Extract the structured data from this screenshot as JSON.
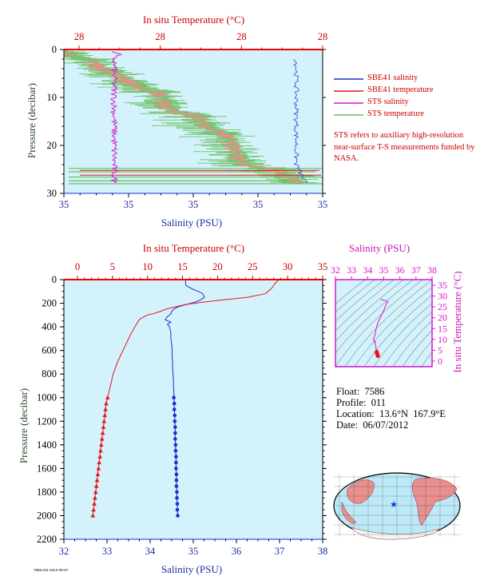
{
  "colors": {
    "plot_bg": "#d4f2fb",
    "temperature": "#e8141e",
    "salinity": "#1a2fd0",
    "sts_salinity": "#d615cf",
    "sts_temperature": "#6ac060",
    "red_text": "#cc0000",
    "navy_text": "#1a2f9c",
    "green_text": "#2a4a2a",
    "magenta_text": "#c817b4"
  },
  "top_panel": {
    "ylabel": "Pressure (decibar)",
    "xlabel_bottom": "Salinity (PSU)",
    "xlabel_top": "In situ Temperature (°C)",
    "bottom_ticks": [
      "35",
      "35",
      "35",
      "35",
      "35"
    ],
    "top_ticks": [
      "28",
      "28",
      "28",
      "28"
    ],
    "y_ticks": [
      "0",
      "10",
      "20",
      "30"
    ]
  },
  "legend": [
    {
      "label": "SBE41 salinity",
      "color": "#1a2fd0"
    },
    {
      "label": "SBE41 temperature",
      "color": "#e8141e"
    },
    {
      "label": "STS salinity",
      "color": "#d615cf"
    },
    {
      "label": "STS temperature",
      "color": "#6ac060"
    }
  ],
  "note": "STS refers to auxiliary high-resolution near-surface T-S measurements funded by NASA.",
  "main_panel": {
    "ylabel": "Pressure (decibar)",
    "xlabel_bottom": "Salinity (PSU)",
    "xlabel_top": "In situ Temperature (°C)",
    "salinity_ticks": [
      "32",
      "33",
      "34",
      "35",
      "36",
      "37",
      "38"
    ],
    "temperature_ticks": [
      "0",
      "5",
      "10",
      "15",
      "20",
      "25",
      "30",
      "35"
    ],
    "pressure_ticks": [
      "0",
      "200",
      "400",
      "600",
      "800",
      "1000",
      "1200",
      "1400",
      "1600",
      "1800",
      "2000",
      "2200"
    ]
  },
  "ts_panel": {
    "xlabel_top": "Salinity (PSU)",
    "ylabel_right": "In situ Temperature (°C)",
    "sal_ticks": [
      "32",
      "33",
      "34",
      "35",
      "36",
      "37",
      "38"
    ],
    "temp_ticks": [
      "0",
      "5",
      "10",
      "15",
      "20",
      "25",
      "30",
      "35"
    ]
  },
  "info": {
    "float": "Float:  7586",
    "profile": "Profile:  011",
    "location": "Location:  13.6°N  167.9°E",
    "date": "Date:  06/07/2012"
  },
  "footer_id": "7586-011-2012-06-07",
  "chart_data": [
    {
      "type": "line",
      "name": "main profile",
      "ylabel": "Pressure (decibar)",
      "xlabel_bottom": "Salinity (PSU)",
      "xlabel_top": "In situ Temperature (°C)",
      "ylim": [
        2200,
        0
      ],
      "salinity_xlim": [
        32,
        38
      ],
      "temperature_xlim": [
        -2,
        35
      ],
      "series": [
        {
          "axis": "salinity",
          "pressure": [
            0,
            20,
            50,
            80,
            100,
            120,
            150,
            170,
            190,
            210,
            230,
            250,
            270,
            290,
            300,
            320,
            340,
            360,
            380,
            400,
            450,
            500,
            550,
            600,
            650,
            700,
            750,
            800,
            850,
            900,
            950,
            1000,
            1050,
            1100,
            1150,
            1200,
            1250,
            1300,
            1350,
            1400,
            1450,
            1500,
            1550,
            1600,
            1650,
            1700,
            1750,
            1800,
            1850,
            1900,
            1950,
            2000
          ],
          "values": [
            34.82,
            34.82,
            34.83,
            34.98,
            35.12,
            35.22,
            35.26,
            35.18,
            35.05,
            34.85,
            34.65,
            34.55,
            34.5,
            34.48,
            34.45,
            34.38,
            34.35,
            34.48,
            34.4,
            34.45,
            34.48,
            34.48,
            34.5,
            34.51,
            34.51,
            34.52,
            34.52,
            34.53,
            34.54,
            34.54,
            34.55,
            34.55,
            34.56,
            34.56,
            34.57,
            34.57,
            34.58,
            34.58,
            34.58,
            34.59,
            34.59,
            34.6,
            34.6,
            34.6,
            34.61,
            34.61,
            34.61,
            34.62,
            34.62,
            34.63,
            34.63,
            34.64
          ]
        },
        {
          "axis": "temperature",
          "pressure": [
            0,
            10,
            20,
            40,
            60,
            80,
            100,
            120,
            150,
            170,
            190,
            210,
            230,
            250,
            270,
            290,
            300,
            330,
            350,
            380,
            400,
            450,
            500,
            550,
            600,
            650,
            700,
            750,
            800,
            850,
            900,
            950,
            1000,
            1050,
            1100,
            1150,
            1200,
            1250,
            1300,
            1350,
            1400,
            1450,
            1500,
            1550,
            1600,
            1650,
            1700,
            1750,
            1800,
            1850,
            1900,
            1950,
            2000
          ],
          "values": [
            28.5,
            28.6,
            28.4,
            28.1,
            27.9,
            27.6,
            27.2,
            26.8,
            24.2,
            21.0,
            18.0,
            15.5,
            14.0,
            12.7,
            11.8,
            10.8,
            10.0,
            9.0,
            8.7,
            8.4,
            8.2,
            7.7,
            7.3,
            6.9,
            6.5,
            6.1,
            5.7,
            5.4,
            5.1,
            4.9,
            4.7,
            4.5,
            4.3,
            4.1,
            4.0,
            3.9,
            3.8,
            3.7,
            3.6,
            3.5,
            3.4,
            3.3,
            3.2,
            3.1,
            3.0,
            2.9,
            2.8,
            2.7,
            2.6,
            2.5,
            2.4,
            2.3,
            2.2
          ]
        }
      ]
    }
  ]
}
